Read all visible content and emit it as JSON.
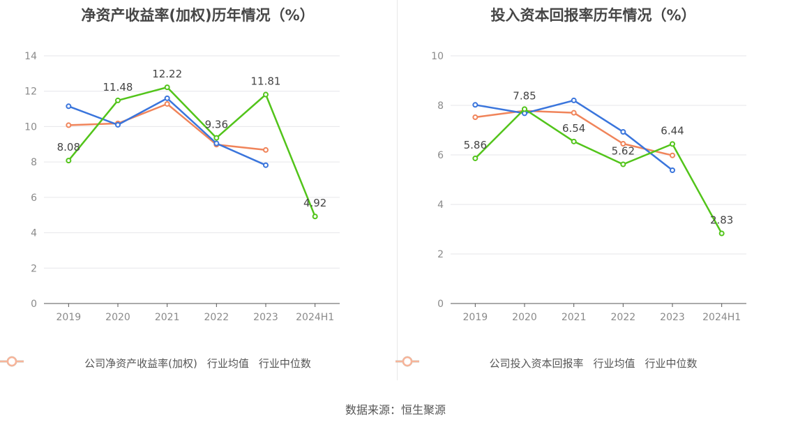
{
  "chart_data": [
    {
      "type": "line",
      "title": "净资产收益率(加权)历年情况（%）",
      "categories": [
        "2019",
        "2020",
        "2021",
        "2022",
        "2023",
        "2024H1"
      ],
      "ylim": [
        0,
        14
      ],
      "yticks": [
        0,
        2,
        4,
        6,
        8,
        10,
        12,
        14
      ],
      "grid": true,
      "legend_position": "bottom",
      "series": [
        {
          "name": "公司净资产收益率(加权)",
          "color": "#52c41a",
          "values": [
            8.08,
            11.48,
            12.22,
            9.36,
            11.81,
            4.92
          ],
          "labels": [
            "8.08",
            "11.48",
            "12.22",
            "9.36",
            "11.81",
            "4.92"
          ]
        },
        {
          "name": "行业均值",
          "color": "#3a75dc",
          "values": [
            11.15,
            10.1,
            11.6,
            9.05,
            7.82,
            null
          ]
        },
        {
          "name": "行业中位数",
          "color": "#f0845a",
          "values": [
            10.08,
            10.18,
            11.28,
            8.98,
            8.68,
            null
          ]
        }
      ]
    },
    {
      "type": "line",
      "title": "投入资本回报率历年情况（%）",
      "categories": [
        "2019",
        "2020",
        "2021",
        "2022",
        "2023",
        "2024H1"
      ],
      "ylim": [
        0,
        10
      ],
      "yticks": [
        0,
        2,
        4,
        6,
        8,
        10
      ],
      "grid": true,
      "legend_position": "bottom",
      "series": [
        {
          "name": "公司投入资本回报率",
          "color": "#52c41a",
          "values": [
            5.86,
            7.85,
            6.54,
            5.62,
            6.44,
            2.83
          ],
          "labels": [
            "5.86",
            "7.85",
            "6.54",
            "5.62",
            "6.44",
            "2.83"
          ]
        },
        {
          "name": "行业均值",
          "color": "#3a75dc",
          "values": [
            8.02,
            7.68,
            8.2,
            6.93,
            5.38,
            null
          ]
        },
        {
          "name": "行业中位数",
          "color": "#f0845a",
          "values": [
            7.52,
            7.78,
            7.7,
            6.45,
            5.98,
            null
          ]
        }
      ]
    }
  ],
  "legend_colors": {
    "company": "#52c41a",
    "avg": "#8fb0ef",
    "median": "#f7b49a"
  },
  "source": "数据来源：恒生聚源"
}
